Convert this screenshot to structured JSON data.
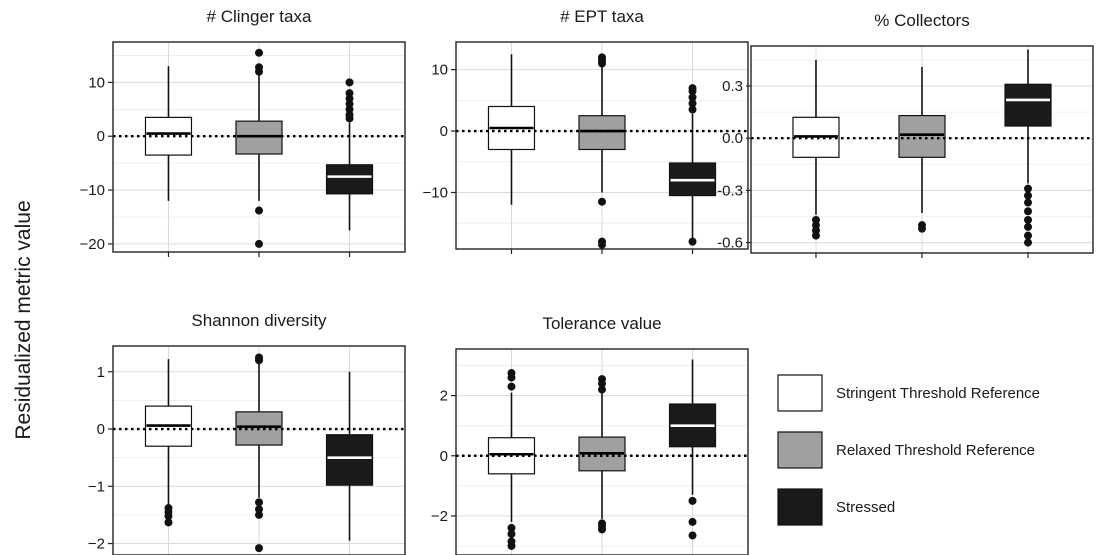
{
  "figure": {
    "ylabel": "Residualized metric value",
    "colors": {
      "stringent": "#ffffff",
      "relaxed": "#a0a0a0",
      "stressed": "#1a1a1a",
      "median_on_dark": "#ffffff",
      "median_on_light": "#000000"
    }
  },
  "legend": {
    "items": [
      {
        "label": "Stringent Threshold Reference",
        "color": "#ffffff"
      },
      {
        "label": "Relaxed Threshold Reference",
        "color": "#a0a0a0"
      },
      {
        "label": "Stressed",
        "color": "#1a1a1a"
      }
    ]
  },
  "chart_data": [
    {
      "type": "boxplot",
      "title": "# Clinger taxa",
      "ylim": [
        -21.5,
        17.5
      ],
      "yticks": [
        10,
        0,
        -10,
        -20
      ],
      "ytick_labels": [
        "10",
        "0",
        "−10",
        "−20"
      ],
      "reference_line": 0,
      "groups": [
        {
          "name": "Stringent Threshold Reference",
          "q1": -3.5,
          "median": 0.5,
          "q3": 3.5,
          "whisker_low": -12,
          "whisker_high": 13,
          "outliers": []
        },
        {
          "name": "Relaxed Threshold Reference",
          "q1": -3.3,
          "median": 0,
          "q3": 2.8,
          "whisker_low": -12,
          "whisker_high": 12,
          "outliers": [
            12,
            12.8,
            15.5,
            -13.8,
            -20
          ]
        },
        {
          "name": "Stressed",
          "q1": -10.7,
          "median": -7.5,
          "q3": -5.3,
          "whisker_low": -17.5,
          "whisker_high": 2.5,
          "outliers": [
            3.3,
            4,
            5,
            6,
            7,
            8,
            10
          ]
        }
      ]
    },
    {
      "type": "boxplot",
      "title": "# EPT taxa",
      "ylim": [
        -19.2,
        14.5
      ],
      "yticks": [
        10,
        0,
        -10
      ],
      "ytick_labels": [
        "10",
        "0",
        "−10"
      ],
      "reference_line": 0,
      "groups": [
        {
          "name": "Stringent Threshold Reference",
          "q1": -3,
          "median": 0.5,
          "q3": 4,
          "whisker_low": -12,
          "whisker_high": 12.5,
          "outliers": []
        },
        {
          "name": "Relaxed Threshold Reference",
          "q1": -3,
          "median": 0,
          "q3": 2.5,
          "whisker_low": -10,
          "whisker_high": 10.5,
          "outliers": [
            11,
            11.5,
            12,
            -11.5,
            -18,
            -18.5
          ]
        },
        {
          "name": "Stressed",
          "q1": -10.5,
          "median": -8,
          "q3": -5.2,
          "whisker_low": -18,
          "whisker_high": 2.8,
          "outliers": [
            3.5,
            4.5,
            5.5,
            6.5,
            7,
            -18
          ]
        }
      ]
    },
    {
      "type": "boxplot",
      "title": "% Collectors",
      "ylim": [
        -0.66,
        0.53
      ],
      "yticks": [
        0.3,
        0,
        -0.3,
        -0.6
      ],
      "ytick_labels": [
        "0.3",
        "0.0",
        "-0.3",
        "-0.6"
      ],
      "reference_line": 0,
      "groups": [
        {
          "name": "Stringent Threshold Reference",
          "q1": -0.11,
          "median": 0.01,
          "q3": 0.12,
          "whisker_low": -0.44,
          "whisker_high": 0.45,
          "outliers": [
            -0.47,
            -0.5,
            -0.53,
            -0.56
          ]
        },
        {
          "name": "Relaxed Threshold Reference",
          "q1": -0.11,
          "median": 0.02,
          "q3": 0.13,
          "whisker_low": -0.43,
          "whisker_high": 0.41,
          "outliers": [
            -0.5,
            -0.52
          ]
        },
        {
          "name": "Stressed",
          "q1": 0.07,
          "median": 0.22,
          "q3": 0.31,
          "whisker_low": -0.26,
          "whisker_high": 0.51,
          "outliers": [
            -0.29,
            -0.33,
            -0.37,
            -0.42,
            -0.47,
            -0.51,
            -0.56,
            -0.6
          ]
        }
      ]
    },
    {
      "type": "boxplot",
      "title": "Shannon diversity",
      "ylim": [
        -2.2,
        1.45
      ],
      "yticks": [
        1,
        0,
        -1,
        -2
      ],
      "ytick_labels": [
        "1",
        "0",
        "−1",
        "−2"
      ],
      "reference_line": 0,
      "groups": [
        {
          "name": "Stringent Threshold Reference",
          "q1": -0.3,
          "median": 0.06,
          "q3": 0.4,
          "whisker_low": -1.33,
          "whisker_high": 1.22,
          "outliers": [
            -1.38,
            -1.45,
            -1.52,
            -1.63
          ]
        },
        {
          "name": "Relaxed Threshold Reference",
          "q1": -0.28,
          "median": 0.04,
          "q3": 0.3,
          "whisker_low": -1.2,
          "whisker_high": 1.15,
          "outliers": [
            1.2,
            1.25,
            -1.28,
            -1.4,
            -1.5,
            -2.08
          ]
        },
        {
          "name": "Stressed",
          "q1": -0.98,
          "median": -0.5,
          "q3": -0.1,
          "whisker_low": -1.95,
          "whisker_high": 1.0,
          "outliers": []
        }
      ]
    },
    {
      "type": "boxplot",
      "title": "Tolerance value",
      "ylim": [
        -3.3,
        3.55
      ],
      "yticks": [
        2,
        0,
        -2
      ],
      "ytick_labels": [
        "2",
        "0",
        "−2"
      ],
      "reference_line": 0,
      "groups": [
        {
          "name": "Stringent Threshold Reference",
          "q1": -0.6,
          "median": 0.05,
          "q3": 0.6,
          "whisker_low": -2.2,
          "whisker_high": 2.1,
          "outliers": [
            2.3,
            2.6,
            2.75,
            -2.4,
            -2.6,
            -2.85,
            -3.0
          ]
        },
        {
          "name": "Relaxed Threshold Reference",
          "q1": -0.5,
          "median": 0.08,
          "q3": 0.62,
          "whisker_low": -2.1,
          "whisker_high": 2.1,
          "outliers": [
            2.2,
            2.4,
            2.55,
            -2.25,
            -2.35,
            -2.45
          ]
        },
        {
          "name": "Stressed",
          "q1": 0.3,
          "median": 1.0,
          "q3": 1.72,
          "whisker_low": -1.3,
          "whisker_high": 3.2,
          "outliers": [
            -1.5,
            -2.2,
            -2.65
          ]
        }
      ]
    }
  ]
}
